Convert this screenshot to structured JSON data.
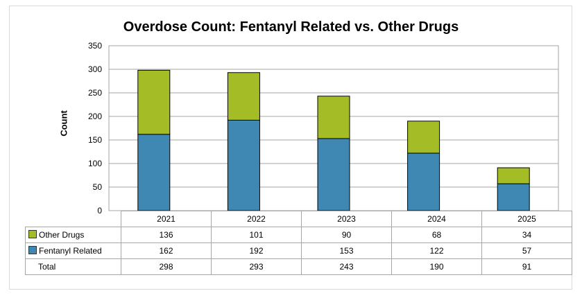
{
  "chart_data": {
    "type": "bar",
    "stacked": true,
    "title": "Overdose Count: Fentanyl Related vs. Other Drugs",
    "ylabel": "Count",
    "xlabel": "",
    "ylim": [
      0,
      350
    ],
    "yticks": [
      0,
      50,
      100,
      150,
      200,
      250,
      300,
      350
    ],
    "grid": true,
    "categories": [
      "2021",
      "2022",
      "2023",
      "2024",
      "2025"
    ],
    "series": [
      {
        "name": "Fentanyl Related",
        "color": "#3f88b4",
        "values": [
          162,
          192,
          153,
          122,
          57
        ]
      },
      {
        "name": "Other Drugs",
        "color": "#a4bd27",
        "values": [
          136,
          101,
          90,
          68,
          34
        ]
      }
    ],
    "table": {
      "rows": [
        {
          "label": "Other Drugs",
          "color": "#a4bd27",
          "values": [
            "136",
            "101",
            "90",
            "68",
            "34"
          ]
        },
        {
          "label": "Fentanyl Related",
          "color": "#3f88b4",
          "values": [
            "162",
            "192",
            "153",
            "122",
            "57"
          ]
        },
        {
          "label": "Total",
          "values": [
            "298",
            "293",
            "243",
            "190",
            "91"
          ]
        }
      ]
    }
  }
}
